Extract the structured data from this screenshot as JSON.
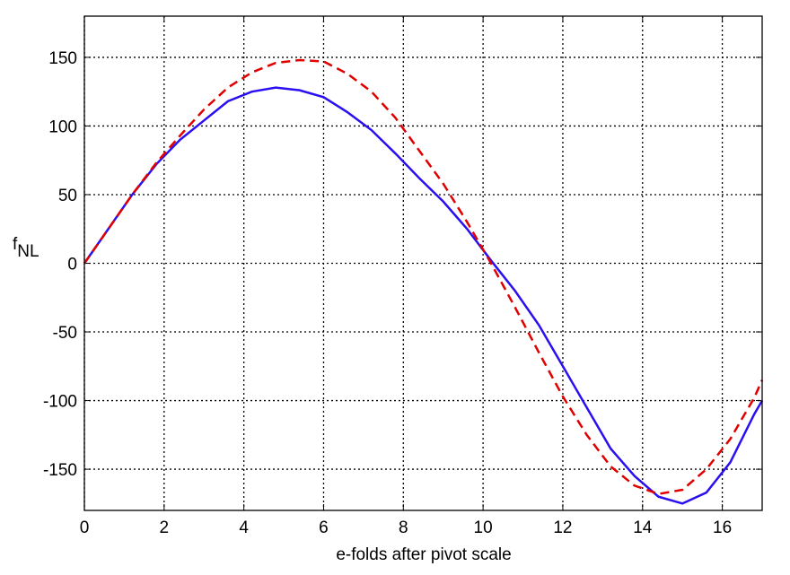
{
  "chart_data": {
    "type": "line",
    "xlabel": "e-folds after pivot scale",
    "ylabel": "f",
    "ylabel_subscript": "NL",
    "x": [
      0,
      0.6,
      1.2,
      1.8,
      2.4,
      3,
      3.6,
      4.2,
      4.8,
      5.4,
      6,
      6.6,
      7.2,
      7.8,
      8.4,
      9,
      9.6,
      10.2,
      10.8,
      11.4,
      12,
      12.6,
      13.2,
      13.8,
      14.4,
      15,
      15.6,
      16.2,
      16.8,
      17
    ],
    "series": [
      {
        "color": "#2a0ff0",
        "dash": "solid",
        "values": [
          0,
          25,
          50,
          72,
          90,
          104,
          118,
          125,
          128,
          126,
          121,
          110,
          97,
          80,
          62,
          45,
          25,
          2,
          -20,
          -45,
          -75,
          -105,
          -135,
          -155,
          -170,
          -175,
          -167,
          -145,
          -110,
          -100
        ]
      },
      {
        "color": "#e00000",
        "dash": "dashed",
        "values": [
          0,
          25,
          50,
          73,
          93,
          112,
          128,
          139,
          146,
          148,
          147,
          138,
          125,
          106,
          82,
          58,
          30,
          0,
          -32,
          -65,
          -97,
          -125,
          -148,
          -162,
          -168,
          -165,
          -150,
          -128,
          -98,
          -85
        ]
      }
    ],
    "xlim": [
      0,
      17
    ],
    "xticks": [
      0,
      2,
      4,
      6,
      8,
      10,
      12,
      14,
      16
    ],
    "ylim": [
      -180,
      180
    ],
    "yticks": [
      -150,
      -100,
      -50,
      0,
      50,
      100,
      150
    ],
    "grid": true
  }
}
